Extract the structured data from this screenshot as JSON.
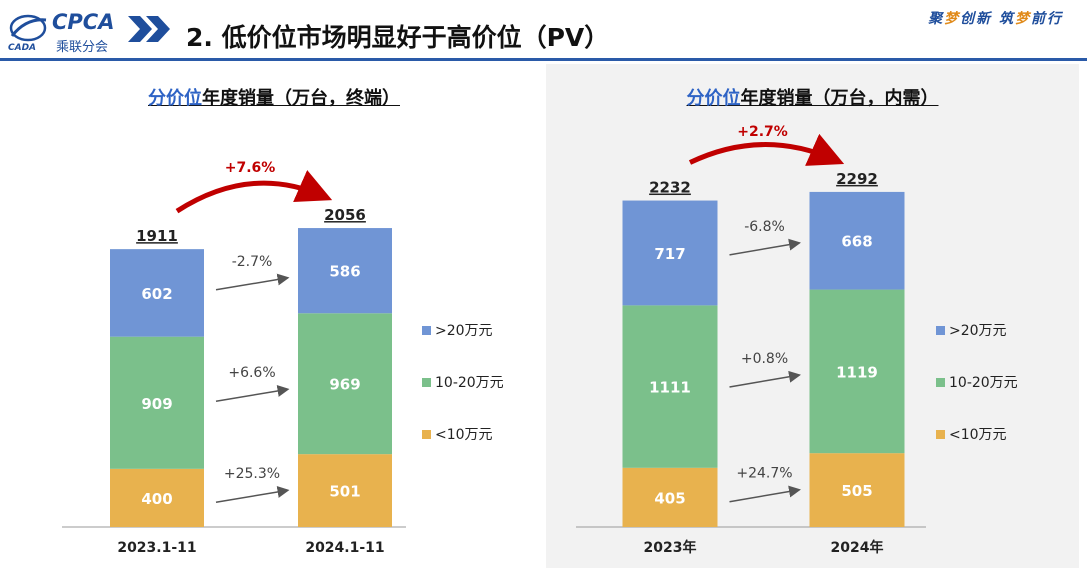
{
  "header": {
    "logo_brand": "CPCA",
    "logo_sub": "乘联分会",
    "logo_mark_text": "CADA",
    "title": "2. 低价位市场明显好于高价位（PV）",
    "slogan_parts": [
      "聚",
      "梦",
      "创新 筑",
      "梦",
      "前行"
    ]
  },
  "colors": {
    "high": "#7095d5",
    "mid": "#7bc08b",
    "low": "#e8b24e",
    "arrow_red": "#c00000",
    "pct_red": "#c00000",
    "header_blue": "#2a5aa8"
  },
  "chart_data": [
    {
      "type": "bar",
      "stacked": true,
      "title_keyword": "分价位",
      "title_rest": "年度销量（万台，终端）",
      "categories": [
        "2023.1-11",
        "2024.1-11"
      ],
      "series": [
        {
          "name": "<10万元",
          "values": [
            400,
            501
          ]
        },
        {
          "name": "10-20万元",
          "values": [
            909,
            969
          ]
        },
        {
          "name": ">20万元",
          "values": [
            602,
            586
          ]
        }
      ],
      "totals": [
        1911,
        2056
      ],
      "total_change": "+7.6%",
      "segment_changes": [
        {
          "series": ">20万元",
          "label": "-2.7%"
        },
        {
          "series": "10-20万元",
          "label": "+6.6%"
        },
        {
          "series": "<10万元",
          "label": "+25.3%"
        }
      ],
      "legend": [
        ">20万元",
        "10-20万元",
        "<10万元"
      ],
      "legend_position": "right",
      "grid": false
    },
    {
      "type": "bar",
      "stacked": true,
      "title_keyword": "分价位",
      "title_rest": "年度销量（万台，内需）",
      "categories": [
        "2023年",
        "2024年"
      ],
      "series": [
        {
          "name": "<10万元",
          "values": [
            405,
            505
          ]
        },
        {
          "name": "10-20万元",
          "values": [
            1111,
            1119
          ]
        },
        {
          "name": ">20万元",
          "values": [
            717,
            668
          ]
        }
      ],
      "totals": [
        2232,
        2292
      ],
      "total_change": "+2.7%",
      "segment_changes": [
        {
          "series": ">20万元",
          "label": "-6.8%"
        },
        {
          "series": "10-20万元",
          "label": "+0.8%"
        },
        {
          "series": "<10万元",
          "label": "+24.7%"
        }
      ],
      "legend": [
        ">20万元",
        "10-20万元",
        "<10万元"
      ],
      "legend_position": "right",
      "grid": false
    }
  ]
}
